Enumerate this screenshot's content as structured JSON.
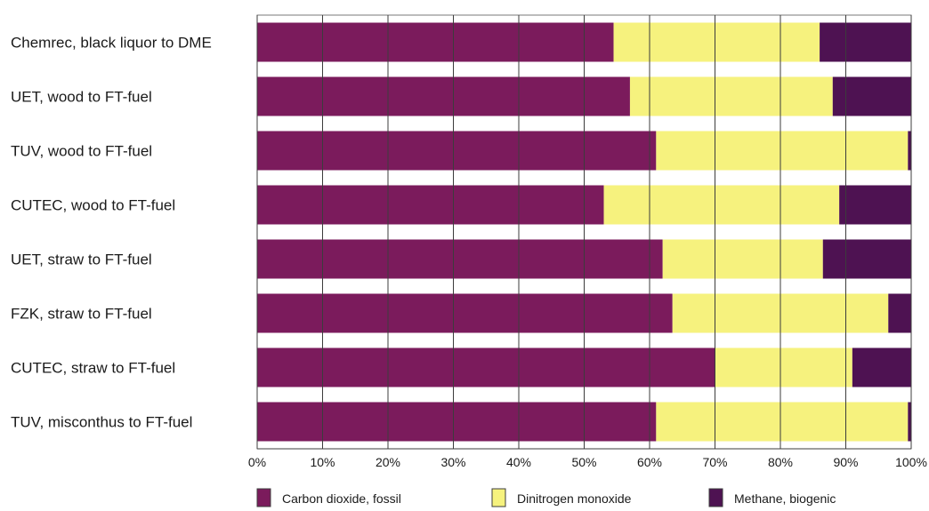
{
  "chart_data": {
    "type": "bar",
    "orientation": "horizontal",
    "stacked": true,
    "percent": true,
    "categories": [
      "Chemrec, black liquor to DME",
      "UET, wood to FT-fuel",
      "TUV, wood to FT-fuel",
      "CUTEC, wood to FT-fuel",
      "UET, straw to FT-fuel",
      "FZK, straw to FT-fuel",
      "CUTEC, straw to FT-fuel",
      "TUV, misconthus to FT-fuel"
    ],
    "series": [
      {
        "name": "Carbon dioxide, fossil",
        "color": "#7b1b5c",
        "values": [
          54.5,
          57,
          61,
          53,
          62,
          63.5,
          70,
          61
        ]
      },
      {
        "name": "Dinitrogen monoxide",
        "color": "#f6f27e",
        "values": [
          31.5,
          31,
          38.5,
          36,
          24.5,
          33,
          21,
          38.5
        ]
      },
      {
        "name": "Methane, biogenic",
        "color": "#4e1252",
        "values": [
          14,
          12,
          0.5,
          11,
          13.5,
          3.5,
          9,
          0.5
        ]
      }
    ],
    "xticks": [
      "0%",
      "10%",
      "20%",
      "30%",
      "40%",
      "50%",
      "60%",
      "70%",
      "80%",
      "90%",
      "100%"
    ],
    "xlim": [
      0,
      100
    ],
    "grid": true,
    "legend_position": "bottom"
  }
}
